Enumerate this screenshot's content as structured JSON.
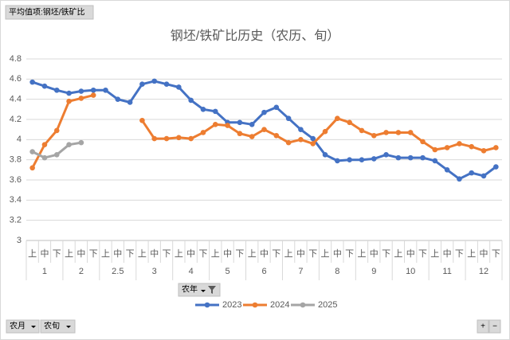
{
  "chart_data": {
    "type": "line",
    "title": "钢坯/铁矿比历史（农历、旬）",
    "categories": [
      "上",
      "中",
      "下",
      "上",
      "中",
      "下",
      "上",
      "中",
      "下",
      "上",
      "中",
      "下",
      "上",
      "中",
      "下",
      "上",
      "中",
      "下",
      "上",
      "中",
      "下",
      "上",
      "中",
      "下",
      "上",
      "中",
      "下",
      "上",
      "中",
      "下",
      "上",
      "中",
      "下",
      "上",
      "中",
      "下",
      "上",
      "中",
      "下"
    ],
    "category_groups": [
      "1",
      "2",
      "2.5",
      "3",
      "4",
      "5",
      "6",
      "7",
      "8",
      "9",
      "10",
      "11",
      "12"
    ],
    "series": [
      {
        "name": "2023",
        "color": "#4472c4",
        "values": [
          4.57,
          4.53,
          4.49,
          4.46,
          4.48,
          4.49,
          4.49,
          4.4,
          4.37,
          4.55,
          4.58,
          4.55,
          4.52,
          4.39,
          4.3,
          4.28,
          4.17,
          4.17,
          4.15,
          4.27,
          4.32,
          4.21,
          4.1,
          4.01,
          3.85,
          3.79,
          3.8,
          3.8,
          3.81,
          3.85,
          3.82,
          3.82,
          3.82,
          3.79,
          3.7,
          3.61,
          3.67,
          3.64,
          3.73
        ]
      },
      {
        "name": "2024",
        "color": "#ed7d31",
        "values": [
          3.72,
          3.95,
          4.09,
          4.38,
          4.41,
          4.44,
          null,
          null,
          null,
          4.19,
          4.01,
          4.01,
          4.02,
          4.01,
          4.07,
          4.15,
          4.14,
          4.06,
          4.03,
          4.1,
          4.04,
          3.97,
          4.0,
          3.96,
          4.08,
          4.21,
          4.17,
          4.09,
          4.04,
          4.07,
          4.07,
          4.07,
          3.98,
          3.9,
          3.92,
          3.96,
          3.93,
          3.89,
          3.92
        ]
      },
      {
        "name": "2025",
        "color": "#a5a5a5",
        "values": [
          3.88,
          3.82,
          3.85,
          3.95,
          3.97,
          null,
          null,
          null,
          null,
          null,
          null,
          null,
          null,
          null,
          null,
          null,
          null,
          null,
          null,
          null,
          null,
          null,
          null,
          null,
          null,
          null,
          null,
          null,
          null,
          null,
          null,
          null,
          null,
          null,
          null,
          null,
          null,
          null,
          null
        ]
      }
    ],
    "ylim": [
      3,
      4.8
    ],
    "yticks": [
      3,
      3.2,
      3.4,
      3.6,
      3.8,
      4,
      4.2,
      4.4,
      4.6,
      4.8
    ],
    "grid": true,
    "legend": "bottom"
  },
  "pivot_buttons": {
    "value_field": "平均值项:钢坯/铁矿比",
    "filter": "农年",
    "row_fields": [
      "农月",
      "农旬"
    ],
    "zoom": [
      "+",
      "−"
    ]
  }
}
